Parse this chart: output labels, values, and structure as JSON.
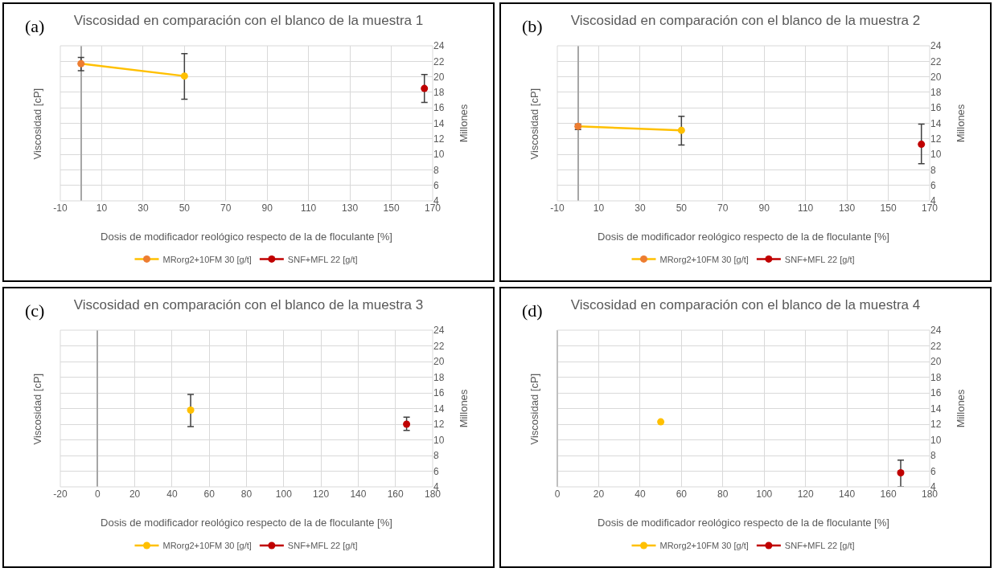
{
  "chart_data": [
    {
      "type": "line",
      "title": "Viscosidad en comparación con el blanco de la muestra 1",
      "xlabel": "Dosis de modificador reológico respecto de la de floculante [%]",
      "ylabel": "Viscosidad [cP]",
      "y2label": "Millones",
      "annotations": [
        "(a)"
      ],
      "xlim": [
        -10,
        170
      ],
      "xticks": [
        -10,
        10,
        30,
        50,
        70,
        90,
        110,
        130,
        150,
        170
      ],
      "y2lim": [
        4,
        24
      ],
      "y2ticks": [
        4,
        6,
        8,
        10,
        12,
        14,
        16,
        18,
        20,
        22,
        24
      ],
      "grid": true,
      "legend": "bottom",
      "marker": "circle",
      "line_style": "solid",
      "series": [
        {
          "name": "MRorg2+10FM 30 [g/t]",
          "color": "#ffc000",
          "colors": [
            "#ed7d31",
            "#ffc000"
          ],
          "axis": "y2",
          "x": [
            0,
            50
          ],
          "values": [
            21.7,
            20.1
          ],
          "errors": [
            [
              20.8,
              22.5
            ],
            [
              17.1,
              23.0
            ]
          ]
        },
        {
          "name": "SNF+MFL 22 [g/t]",
          "color": "#c00000",
          "axis": "y2",
          "x": [
            166
          ],
          "values": [
            18.5
          ],
          "errors": [
            [
              16.7,
              20.3
            ]
          ]
        }
      ]
    },
    {
      "type": "line",
      "title": "Viscosidad en comparación con el blanco de la muestra 2",
      "xlabel": "Dosis de modificador reológico respecto de la de floculante [%]",
      "ylabel": "Viscosidad [cP]",
      "y2label": "Millones",
      "annotations": [
        "(b)"
      ],
      "xlim": [
        -10,
        170
      ],
      "xticks": [
        -10,
        10,
        30,
        50,
        70,
        90,
        110,
        130,
        150,
        170
      ],
      "y2lim": [
        4,
        24
      ],
      "y2ticks": [
        4,
        6,
        8,
        10,
        12,
        14,
        16,
        18,
        20,
        22,
        24
      ],
      "grid": true,
      "legend": "bottom",
      "marker": "circle",
      "line_style": "solid",
      "series": [
        {
          "name": "MRorg2+10FM 30 [g/t]",
          "color": "#ffc000",
          "colors": [
            "#ed7d31",
            "#ffc000"
          ],
          "axis": "y2",
          "x": [
            0,
            50
          ],
          "values": [
            13.6,
            13.1
          ],
          "errors": [
            [
              13.2,
              13.9
            ],
            [
              11.2,
              14.9
            ]
          ]
        },
        {
          "name": "SNF+MFL 22 [g/t]",
          "color": "#c00000",
          "axis": "y2",
          "x": [
            166
          ],
          "values": [
            11.3
          ],
          "errors": [
            [
              8.8,
              13.9
            ]
          ]
        }
      ]
    },
    {
      "type": "line",
      "title": "Viscosidad en comparación con el blanco de la muestra 3",
      "xlabel": "Dosis de modificador reológico respecto de la de floculante [%]",
      "ylabel": "Viscosidad [cP]",
      "y2label": "Millones",
      "annotations": [
        "(c)"
      ],
      "xlim": [
        -20,
        180
      ],
      "xticks": [
        -20,
        0,
        20,
        40,
        60,
        80,
        100,
        120,
        140,
        160,
        180
      ],
      "y2lim": [
        4,
        24
      ],
      "y2ticks": [
        4,
        6,
        8,
        10,
        12,
        14,
        16,
        18,
        20,
        22,
        24
      ],
      "grid": true,
      "legend": "bottom",
      "marker": "circle",
      "line_style": "solid",
      "series": [
        {
          "name": "MRorg2+10FM 30 [g/t]",
          "color": "#ffc000",
          "axis": "y2",
          "x": [
            50
          ],
          "values": [
            13.8
          ],
          "errors": [
            [
              11.7,
              15.8
            ]
          ]
        },
        {
          "name": "SNF+MFL 22 [g/t]",
          "color": "#c00000",
          "axis": "y2",
          "x": [
            166
          ],
          "values": [
            12.0
          ],
          "errors": [
            [
              11.2,
              12.9
            ]
          ]
        }
      ]
    },
    {
      "type": "line",
      "title": "Viscosidad en comparación con el blanco de la muestra 4",
      "xlabel": "Dosis de modificador reológico respecto de la de floculante [%]",
      "ylabel": "Viscosidad [cP]",
      "y2label": "Millones",
      "annotations": [
        "(d)"
      ],
      "xlim": [
        0,
        180
      ],
      "xticks": [
        0,
        20,
        40,
        60,
        80,
        100,
        120,
        140,
        160,
        180
      ],
      "y2lim": [
        4,
        24
      ],
      "y2ticks": [
        4,
        6,
        8,
        10,
        12,
        14,
        16,
        18,
        20,
        22,
        24
      ],
      "grid": true,
      "legend": "bottom",
      "marker": "circle",
      "line_style": "solid",
      "series": [
        {
          "name": "MRorg2+10FM 30 [g/t]",
          "color": "#ffc000",
          "axis": "y2",
          "x": [
            50
          ],
          "values": [
            12.3
          ]
        },
        {
          "name": "SNF+MFL 22 [g/t]",
          "color": "#c00000",
          "axis": "y2",
          "x": [
            166
          ],
          "values": [
            5.8
          ],
          "errors": [
            [
              4.0,
              7.4
            ]
          ]
        }
      ]
    }
  ]
}
